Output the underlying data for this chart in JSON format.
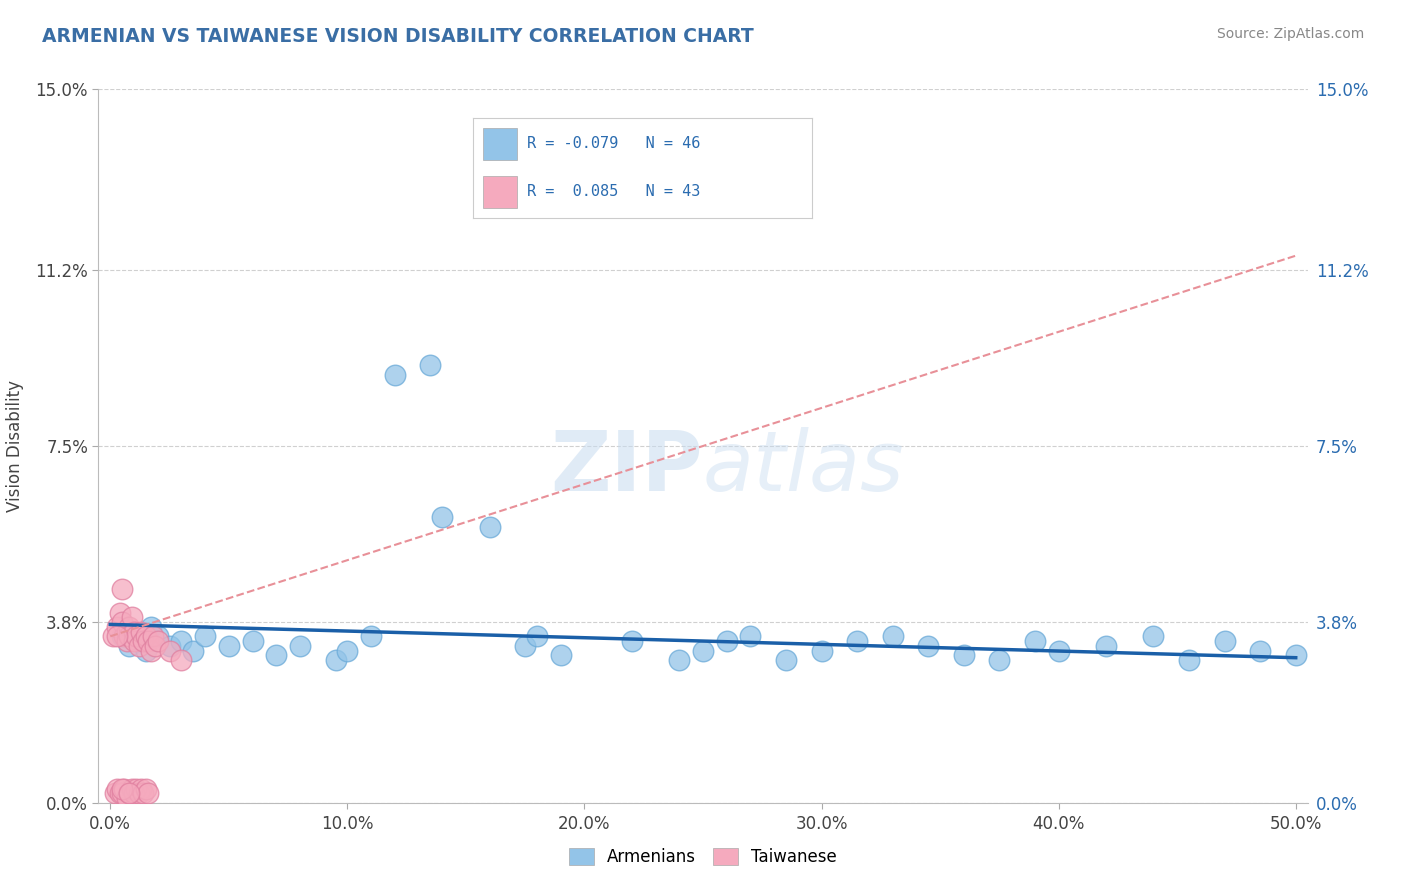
{
  "title": "ARMENIAN VS TAIWANESE VISION DISABILITY CORRELATION CHART",
  "source": "Source: ZipAtlas.com",
  "ylabel_label": "Vision Disability",
  "ytick_labels": [
    "0.0%",
    "3.8%",
    "7.5%",
    "11.2%",
    "15.0%"
  ],
  "ytick_values": [
    0.0,
    3.8,
    7.5,
    11.2,
    15.0
  ],
  "xtick_labels": [
    "0.0%",
    "10.0%",
    "20.0%",
    "30.0%",
    "40.0%",
    "50.0%"
  ],
  "xtick_values": [
    0.0,
    10.0,
    20.0,
    30.0,
    40.0,
    50.0
  ],
  "xlim": [
    0.0,
    50.0
  ],
  "ylim": [
    0.0,
    15.0
  ],
  "watermark": "ZIPatlas",
  "legend_text_color": "#2B6CB0",
  "armenian_color": "#93C4E8",
  "taiwanese_color": "#F5AABE",
  "armenian_line_color": "#1A5FA8",
  "taiwanese_line_color": "#E89098",
  "grid_color": "#D0D0D0",
  "title_color": "#3A6EA5",
  "source_color": "#888888",
  "arm_x": [
    0.5,
    0.8,
    1.0,
    1.2,
    1.5,
    1.7,
    2.0,
    2.5,
    3.0,
    3.5,
    4.0,
    5.0,
    6.0,
    7.0,
    8.0,
    9.5,
    10.0,
    11.0,
    12.0,
    13.5,
    14.0,
    16.0,
    17.5,
    18.0,
    19.0,
    20.5,
    22.0,
    24.0,
    25.0,
    26.0,
    27.0,
    28.5,
    30.0,
    31.5,
    33.0,
    34.5,
    36.0,
    37.5,
    39.0,
    40.0,
    42.0,
    44.0,
    45.5,
    47.0,
    48.5,
    50.0
  ],
  "arm_y": [
    3.5,
    3.3,
    3.6,
    3.4,
    3.2,
    3.7,
    3.5,
    3.3,
    3.4,
    3.2,
    3.5,
    3.3,
    3.4,
    3.1,
    3.3,
    3.0,
    3.2,
    3.5,
    9.0,
    9.2,
    6.0,
    5.8,
    3.3,
    3.5,
    3.1,
    12.8,
    3.4,
    3.0,
    3.2,
    3.4,
    3.5,
    3.0,
    3.2,
    3.4,
    3.5,
    3.3,
    3.1,
    3.0,
    3.4,
    3.2,
    3.3,
    3.5,
    3.0,
    3.4,
    3.2,
    3.1
  ],
  "tai_x": [
    0.1,
    0.2,
    0.3,
    0.3,
    0.4,
    0.4,
    0.5,
    0.5,
    0.5,
    0.6,
    0.6,
    0.7,
    0.7,
    0.7,
    0.8,
    0.8,
    0.8,
    0.9,
    0.9,
    1.0,
    1.0,
    1.0,
    1.1,
    1.1,
    1.2,
    1.2,
    1.3,
    1.3,
    1.4,
    1.4,
    1.5,
    1.5,
    1.6,
    1.6,
    1.7,
    1.8,
    1.9,
    2.0,
    2.5,
    3.0,
    0.3,
    0.5,
    0.8
  ],
  "tai_y": [
    3.5,
    0.2,
    3.7,
    0.3,
    4.0,
    0.2,
    3.8,
    0.2,
    4.5,
    3.5,
    0.3,
    3.6,
    0.1,
    3.4,
    3.7,
    0.2,
    3.5,
    3.9,
    0.3,
    3.6,
    0.2,
    3.4,
    0.3,
    3.5,
    0.2,
    3.3,
    0.3,
    3.6,
    0.2,
    3.4,
    3.5,
    0.3,
    3.4,
    0.2,
    3.2,
    3.5,
    3.3,
    3.4,
    3.2,
    3.0,
    3.5,
    0.3,
    0.2
  ]
}
